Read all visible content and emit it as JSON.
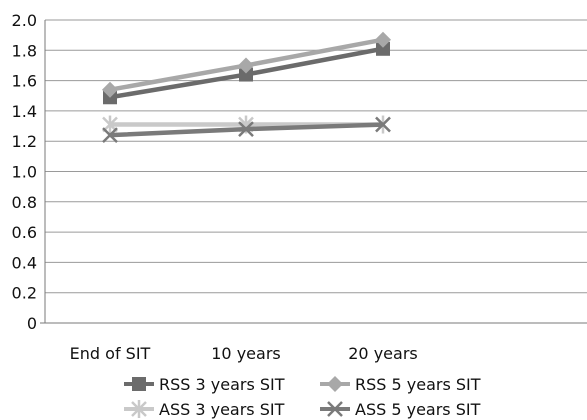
{
  "chart_data": {
    "type": "line",
    "categories": [
      "End of SIT",
      "10 years",
      "20 years"
    ],
    "ylim": [
      0,
      2.0
    ],
    "y_ticks": [
      "0",
      "0.2",
      "0.4",
      "0.6",
      "0.8",
      "1.0",
      "1.2",
      "1.4",
      "1.6",
      "1.8",
      "2.0"
    ],
    "grid": "horizontal",
    "legend_position": "bottom",
    "series": [
      {
        "name": "RSS 3 years SIT",
        "values": [
          1.49,
          1.64,
          1.81
        ],
        "color": "#6b6b6b",
        "marker": "square"
      },
      {
        "name": "RSS 5 years SIT",
        "values": [
          1.54,
          1.7,
          1.87
        ],
        "color": "#a8a8a8",
        "marker": "diamond"
      },
      {
        "name": "ASS 3 years SIT",
        "values": [
          1.31,
          1.31,
          1.31
        ],
        "color": "#c9c9c9",
        "marker": "asterisk"
      },
      {
        "name": "ASS 5 years SIT",
        "values": [
          1.24,
          1.28,
          1.31
        ],
        "color": "#7a7a7a",
        "marker": "cross"
      }
    ]
  }
}
